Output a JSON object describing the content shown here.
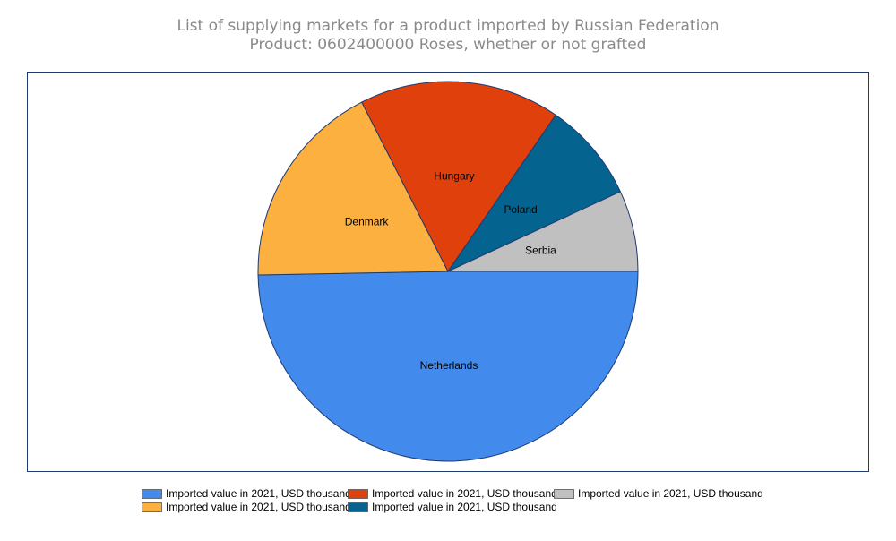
{
  "chart_data": {
    "type": "pie",
    "title": "List of supplying markets for a product imported by Russian Federation",
    "subtitle": "Product: 0602400000 Roses, whether or not grafted",
    "categories": [
      "Netherlands",
      "Denmark",
      "Hungary",
      "Poland",
      "Serbia"
    ],
    "series": [
      {
        "name": "Imported value in 2021, USD thousand",
        "colors": [
          "#428bed",
          "#fbb040",
          "#e0410c",
          "#05638f",
          "#c0c0c0"
        ],
        "values": [
          49.7,
          17.8,
          17.1,
          8.5,
          6.9
        ]
      }
    ]
  }
}
